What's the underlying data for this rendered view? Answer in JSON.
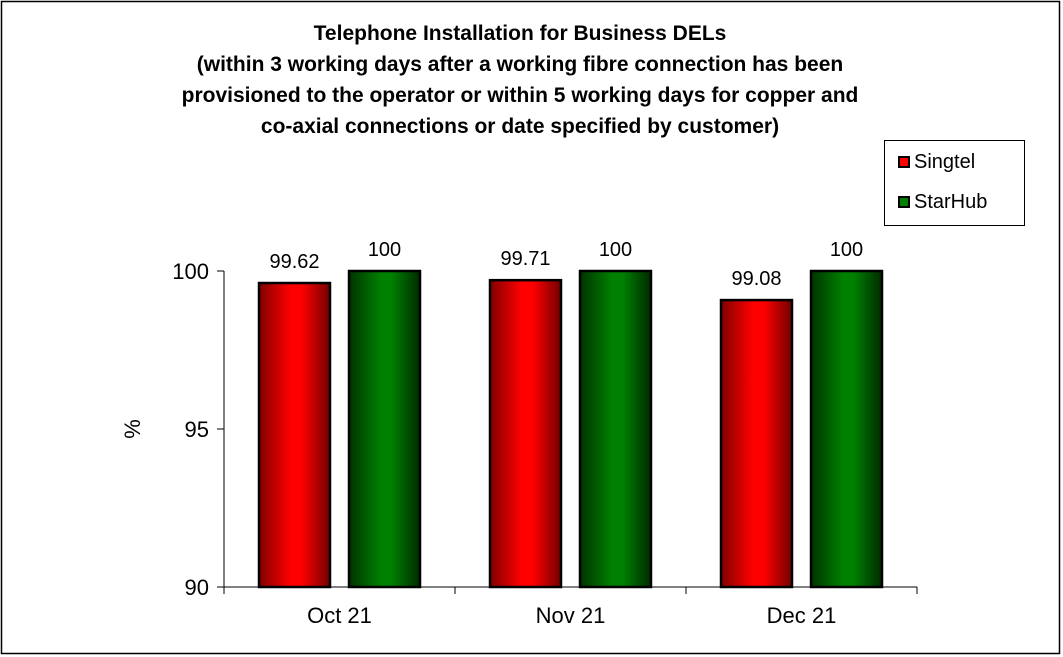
{
  "chart_data": {
    "type": "bar",
    "title": [
      "Telephone Installation for Business DELs",
      "(within 3 working days after a working fibre connection has been",
      "provisioned to the operator or within 5 working days for copper and",
      "co-axial connections or date specified by customer)"
    ],
    "xlabel": "",
    "ylabel": "%",
    "ylim": [
      90,
      100
    ],
    "yticks": [
      "90",
      "95",
      "100"
    ],
    "categories": [
      "Oct 21",
      "Nov 21",
      "Dec 21"
    ],
    "series": [
      {
        "name": "Singtel",
        "color": "#ff0000",
        "values": [
          99.62,
          99.71,
          99.08
        ],
        "labels": [
          "99.62",
          "99.71",
          "99.08"
        ]
      },
      {
        "name": "StarHub",
        "color": "#008000",
        "values": [
          100,
          100,
          100
        ],
        "labels": [
          "100",
          "100",
          "100"
        ]
      }
    ],
    "legend": "top-right",
    "grid": false
  }
}
